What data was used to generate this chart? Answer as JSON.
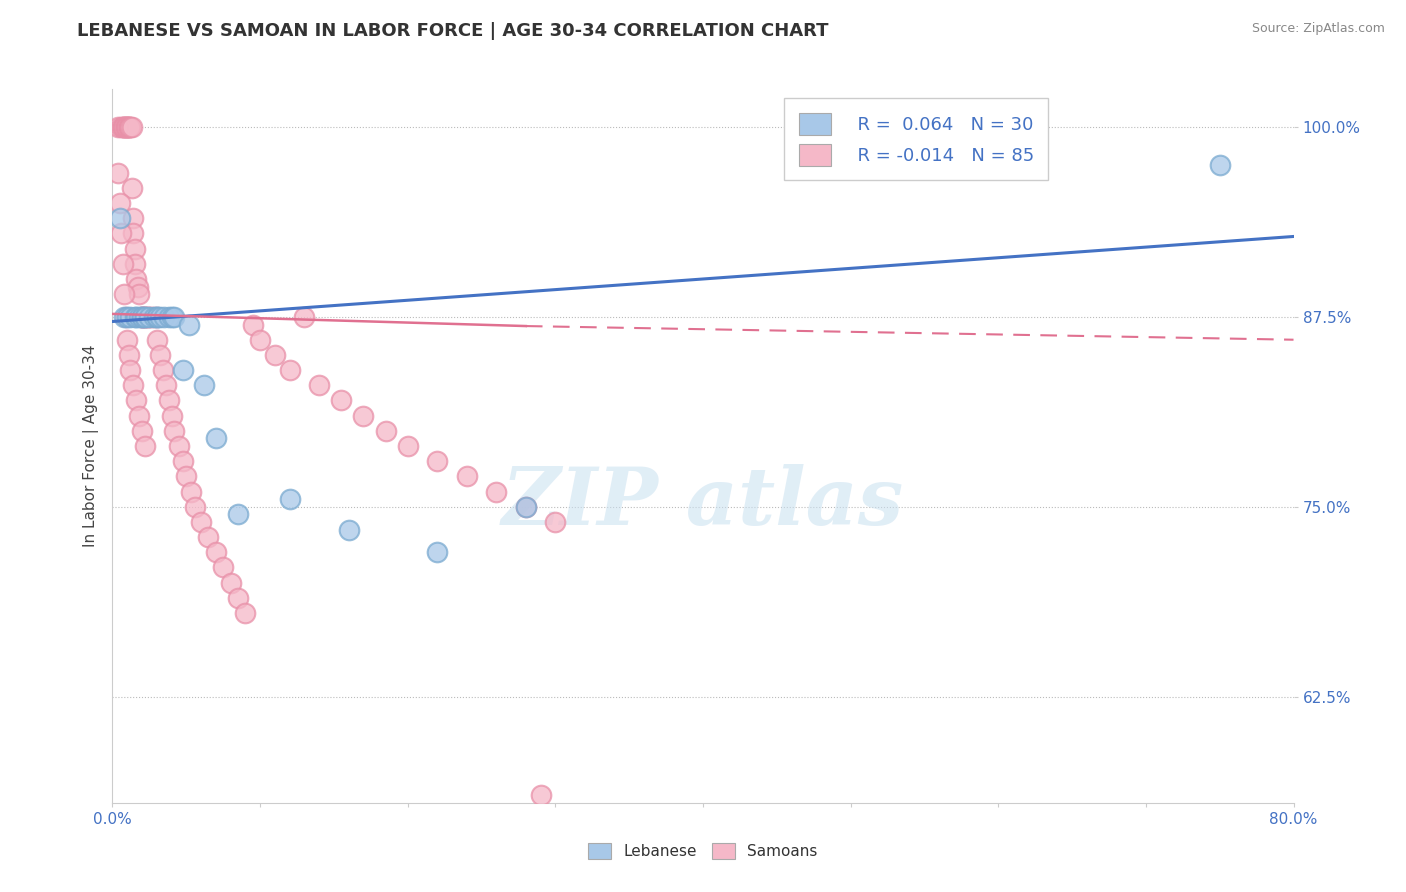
{
  "title": "LEBANESE VS SAMOAN IN LABOR FORCE | AGE 30-34 CORRELATION CHART",
  "source_text": "Source: ZipAtlas.com",
  "ylabel": "In Labor Force | Age 30-34",
  "xlim": [
    0.0,
    0.8
  ],
  "ylim": [
    0.555,
    1.025
  ],
  "ytick_positions": [
    0.625,
    0.75,
    0.875,
    1.0
  ],
  "ytick_labels": [
    "62.5%",
    "75.0%",
    "87.5%",
    "100.0%"
  ],
  "blue_color": "#A8C8E8",
  "blue_edge_color": "#7AAAD0",
  "pink_color": "#F5B8C8",
  "pink_edge_color": "#E890A8",
  "blue_line_color": "#4472C4",
  "pink_line_color": "#E07090",
  "background_color": "#FFFFFF",
  "title_fontsize": 13,
  "axis_label_fontsize": 11,
  "tick_fontsize": 11,
  "blue_scatter_x": [
    0.005,
    0.008,
    0.01,
    0.012,
    0.015,
    0.016,
    0.018,
    0.02,
    0.02,
    0.022,
    0.022,
    0.025,
    0.028,
    0.03,
    0.03,
    0.032,
    0.035,
    0.038,
    0.04,
    0.042,
    0.048,
    0.052,
    0.062,
    0.07,
    0.085,
    0.12,
    0.16,
    0.22,
    0.28,
    0.75
  ],
  "blue_scatter_y": [
    0.94,
    0.875,
    0.875,
    0.875,
    0.875,
    0.875,
    0.875,
    0.875,
    0.875,
    0.875,
    0.875,
    0.875,
    0.875,
    0.875,
    0.875,
    0.875,
    0.875,
    0.875,
    0.875,
    0.875,
    0.84,
    0.87,
    0.83,
    0.795,
    0.745,
    0.755,
    0.735,
    0.72,
    0.75,
    0.975
  ],
  "pink_scatter_x": [
    0.004,
    0.006,
    0.007,
    0.007,
    0.008,
    0.008,
    0.009,
    0.009,
    0.01,
    0.01,
    0.01,
    0.011,
    0.011,
    0.012,
    0.012,
    0.013,
    0.013,
    0.014,
    0.014,
    0.015,
    0.015,
    0.016,
    0.017,
    0.018,
    0.019,
    0.02,
    0.02,
    0.021,
    0.022,
    0.022,
    0.023,
    0.024,
    0.025,
    0.026,
    0.028,
    0.03,
    0.03,
    0.032,
    0.034,
    0.036,
    0.038,
    0.04,
    0.042,
    0.045,
    0.048,
    0.05,
    0.053,
    0.056,
    0.06,
    0.065,
    0.07,
    0.075,
    0.08,
    0.085,
    0.09,
    0.095,
    0.1,
    0.11,
    0.12,
    0.13,
    0.14,
    0.155,
    0.17,
    0.185,
    0.2,
    0.22,
    0.24,
    0.26,
    0.28,
    0.3,
    0.004,
    0.005,
    0.006,
    0.007,
    0.008,
    0.009,
    0.01,
    0.011,
    0.012,
    0.014,
    0.016,
    0.018,
    0.02,
    0.022,
    0.29
  ],
  "pink_scatter_y": [
    1.0,
    1.0,
    1.0,
    1.0,
    1.0,
    1.0,
    1.0,
    1.0,
    1.0,
    1.0,
    1.0,
    1.0,
    1.0,
    1.0,
    1.0,
    1.0,
    0.96,
    0.94,
    0.93,
    0.92,
    0.91,
    0.9,
    0.895,
    0.89,
    0.875,
    0.875,
    0.875,
    0.875,
    0.875,
    0.875,
    0.875,
    0.875,
    0.875,
    0.875,
    0.875,
    0.86,
    0.875,
    0.85,
    0.84,
    0.83,
    0.82,
    0.81,
    0.8,
    0.79,
    0.78,
    0.77,
    0.76,
    0.75,
    0.74,
    0.73,
    0.72,
    0.71,
    0.7,
    0.69,
    0.68,
    0.87,
    0.86,
    0.85,
    0.84,
    0.875,
    0.83,
    0.82,
    0.81,
    0.8,
    0.79,
    0.78,
    0.77,
    0.76,
    0.75,
    0.74,
    0.97,
    0.95,
    0.93,
    0.91,
    0.89,
    0.875,
    0.86,
    0.85,
    0.84,
    0.83,
    0.82,
    0.81,
    0.8,
    0.79,
    0.56
  ]
}
